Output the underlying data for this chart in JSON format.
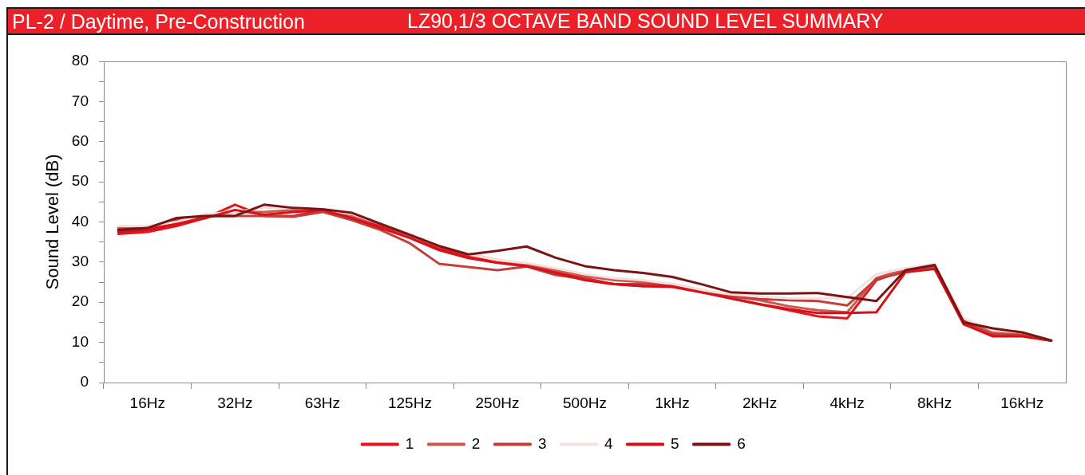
{
  "chart_data": {
    "type": "line",
    "title": "LZ90,1/3 OCTAVE BAND SOUND LEVEL SUMMARY",
    "subtitle": "PL-2 / Daytime, Pre-Construction",
    "ylabel": "Sound Level (dB)",
    "categories": [
      null,
      "16Hz",
      null,
      null,
      "32Hz",
      null,
      null,
      "63Hz",
      null,
      null,
      "125Hz",
      null,
      null,
      "250Hz",
      null,
      null,
      "500Hz",
      null,
      null,
      "1kHz",
      null,
      null,
      "2kHz",
      null,
      null,
      "4kHz",
      null,
      null,
      "8kHz",
      null,
      null,
      "16kHz",
      null
    ],
    "ylim": [
      0,
      80
    ],
    "yticks": [
      0,
      {
        "value": 5,
        "label": null
      },
      10,
      {
        "value": 15,
        "label": null
      },
      20,
      {
        "value": 25,
        "label": null
      },
      30,
      {
        "value": 35,
        "label": null
      },
      40,
      {
        "value": 45,
        "label": null
      },
      50,
      {
        "value": 55,
        "label": null
      },
      60,
      {
        "value": 65,
        "label": null
      },
      70,
      {
        "value": 75,
        "label": null
      },
      80
    ],
    "legend": "bottom",
    "marker": "none",
    "series": [
      {
        "name": "1",
        "color": "#e8141c",
        "values": [
          37,
          37.5,
          39,
          41,
          44.3,
          41.5,
          41.5,
          43,
          41.5,
          39,
          36.5,
          33.5,
          31.3,
          30,
          29.2,
          27.5,
          26,
          24.5,
          24,
          23.8,
          22.5,
          21,
          19.5,
          18,
          16.5,
          16,
          25.5,
          28,
          28.5,
          15,
          12,
          11.8,
          10.5
        ]
      },
      {
        "name": "2",
        "color": "#cc5a52",
        "values": [
          38.5,
          38.5,
          40,
          41.5,
          42.5,
          42.5,
          43,
          43,
          41.5,
          39.5,
          36.5,
          34,
          32,
          30.5,
          29.5,
          28,
          26.5,
          25.5,
          25,
          24.5,
          23,
          21.5,
          20.5,
          19,
          18,
          17.5,
          26,
          28.3,
          29,
          15.5,
          12.5,
          12,
          10.6
        ]
      },
      {
        "name": "3",
        "color": "#c0403c",
        "values": [
          38,
          38.5,
          40.5,
          41.5,
          41.5,
          41.5,
          41.3,
          42.5,
          40.5,
          38,
          34.7,
          29.6,
          28.8,
          28,
          28.9,
          26.8,
          25.8,
          24.5,
          24.5,
          24.3,
          22.5,
          21.5,
          20.8,
          20.5,
          20.3,
          19.2,
          25.8,
          27.5,
          28.7,
          14.5,
          12,
          11.8,
          10.4
        ]
      },
      {
        "name": "4",
        "color": "#f6e0e0",
        "values": [
          39,
          39,
          40,
          42,
          42.5,
          43.5,
          43.5,
          43,
          42,
          39.5,
          37,
          34,
          32,
          30.5,
          29.8,
          28.5,
          27,
          26,
          25.5,
          24.5,
          23,
          22,
          21.5,
          21,
          21,
          21,
          27,
          28.5,
          29.5,
          16,
          13,
          12.5,
          10.7
        ]
      },
      {
        "name": "5",
        "color": "#d81018",
        "values": [
          37.5,
          38,
          39.5,
          41,
          43,
          41.8,
          42.5,
          43,
          41,
          38.5,
          36,
          33,
          31,
          29.8,
          29,
          27.3,
          25.5,
          24.5,
          24,
          24,
          22.5,
          21,
          19.5,
          18.3,
          17.3,
          17.3,
          17.5,
          27.5,
          28.3,
          14.5,
          11.5,
          11.5,
          10.4
        ]
      },
      {
        "name": "6",
        "color": "#7a1414",
        "values": [
          38,
          38.5,
          41,
          41.5,
          41.5,
          44.3,
          43.5,
          43.2,
          42.3,
          39.5,
          36.8,
          34,
          31.9,
          32.8,
          33.9,
          31.1,
          29,
          28,
          27.3,
          26.3,
          24.5,
          22.5,
          22.2,
          22.2,
          22.3,
          21.3,
          20.3,
          28,
          29.3,
          15,
          13.5,
          12.5,
          10.5
        ]
      }
    ]
  }
}
